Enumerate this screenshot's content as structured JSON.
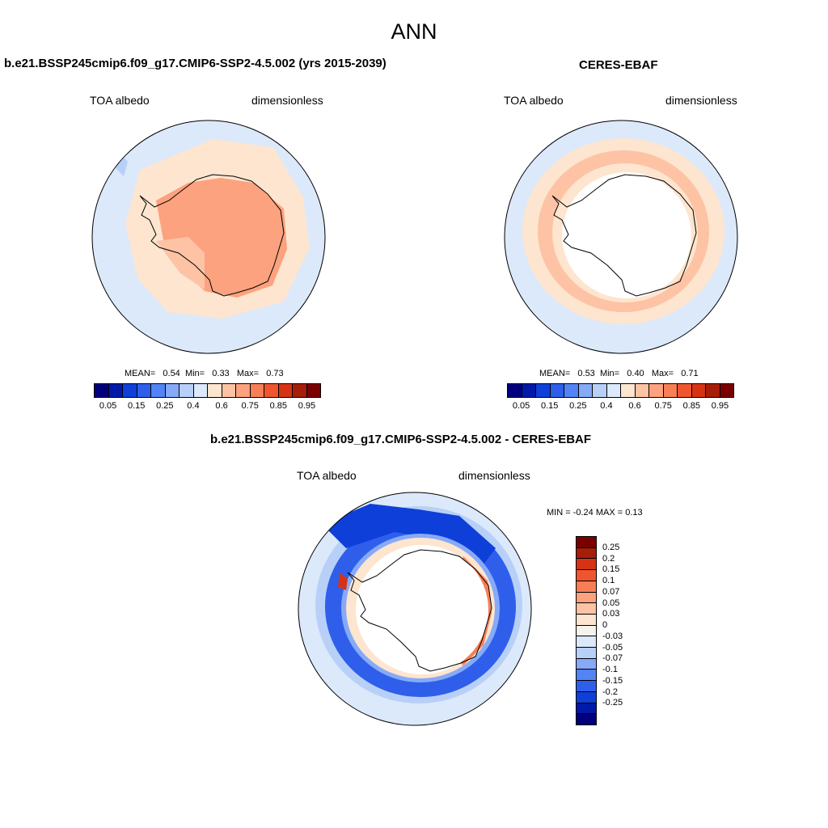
{
  "suptitle": "ANN",
  "panels": [
    {
      "title": "b.e21.BSSP245cmip6.f09_g17.CMIP6-SSP2-4.5.002 (yrs 2015-2039)",
      "left_label": "TOA albedo",
      "right_label": "dimensionless",
      "stats": {
        "mean_label": "MEAN=",
        "mean": "0.54",
        "min_label": "Min=",
        "min": "0.33",
        "max_label": "Max=",
        "max": "0.73"
      }
    },
    {
      "title": "CERES-EBAF",
      "left_label": "TOA albedo",
      "right_label": "dimensionless",
      "stats": {
        "mean_label": "MEAN=",
        "mean": "0.53",
        "min_label": "Min=",
        "min": "0.40",
        "max_label": "Max=",
        "max": "0.71"
      }
    }
  ],
  "diff": {
    "title": "b.e21.BSSP245cmip6.f09_g17.CMIP6-SSP2-4.5.002 - CERES-EBAF",
    "left_label": "TOA albedo",
    "right_label": "dimensionless",
    "minmax": "MIN =  -0.24 MAX =   0.13"
  },
  "colorbar_abs": {
    "colors": [
      "#00007f",
      "#0019a8",
      "#0f3fd9",
      "#2f5eeb",
      "#5383f5",
      "#86aaf7",
      "#b8d0f8",
      "#dbe9fb",
      "#fde5cf",
      "#fdc3a4",
      "#fca27e",
      "#f77f56",
      "#ef5630",
      "#d63315",
      "#a61e08",
      "#7a0000"
    ],
    "ticks": [
      "0.05",
      "0.15",
      "0.25",
      "0.4",
      "0.6",
      "0.75",
      "0.85",
      "0.95"
    ]
  },
  "colorbar_diff": {
    "colors": [
      "#7a0000",
      "#a61e08",
      "#d63315",
      "#ef5630",
      "#f77f56",
      "#fca27e",
      "#fdc3a4",
      "#fde5cf",
      "#f6f2ec",
      "#dbe9fb",
      "#b8d0f8",
      "#86aaf7",
      "#5383f5",
      "#2f5eeb",
      "#0f3fd9",
      "#0019a8",
      "#00007f"
    ],
    "ticks": [
      "0.25",
      "0.2",
      "0.15",
      "0.1",
      "0.07",
      "0.05",
      "0.03",
      "0",
      "-0.03",
      "-0.05",
      "-0.07",
      "-0.1",
      "-0.15",
      "-0.2",
      "-0.25"
    ]
  }
}
